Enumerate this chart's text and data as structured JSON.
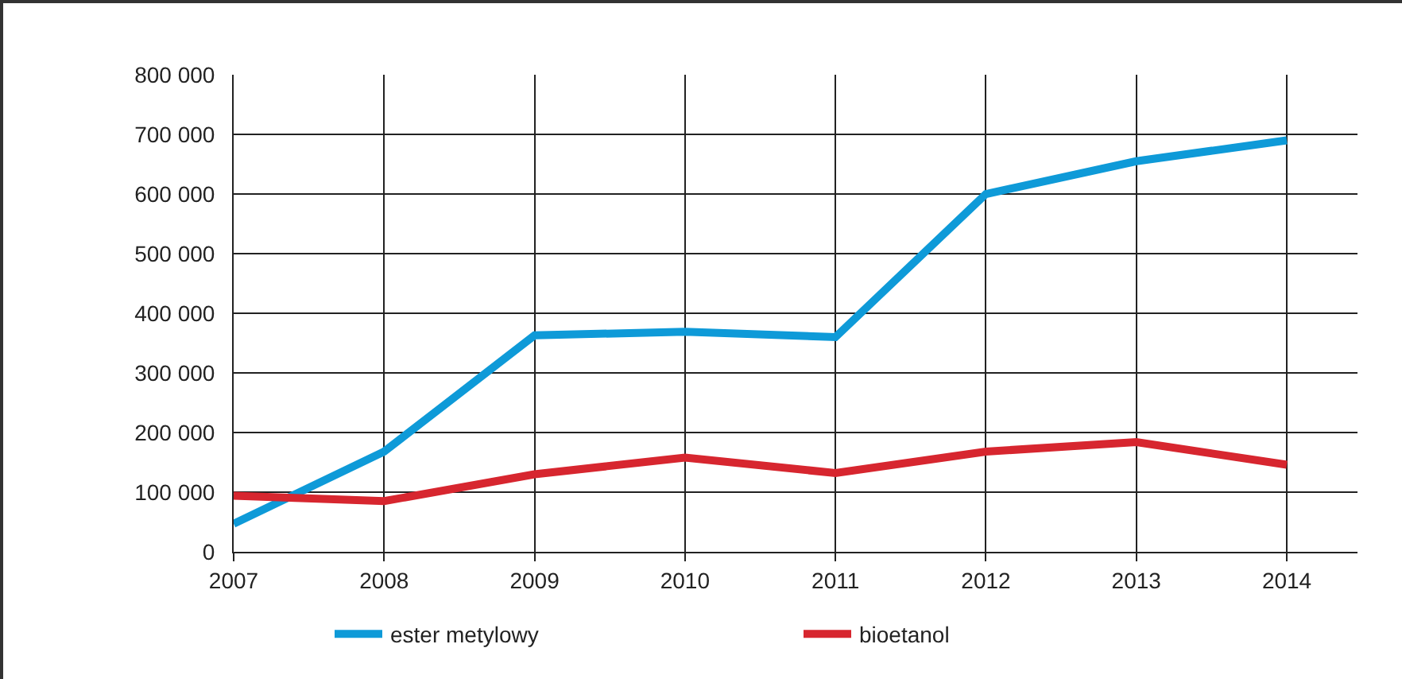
{
  "chart_data": {
    "type": "line",
    "categories": [
      "2007",
      "2008",
      "2009",
      "2010",
      "2011",
      "2012",
      "2013",
      "2014"
    ],
    "series": [
      {
        "name": "ester metylowy",
        "color": "#0e9ad8",
        "values": [
          47000,
          168000,
          363000,
          369000,
          360000,
          600000,
          655000,
          690000
        ]
      },
      {
        "name": "bioetanol",
        "color": "#d7262f",
        "values": [
          94000,
          85000,
          130000,
          158000,
          132000,
          168000,
          184000,
          146000
        ]
      }
    ],
    "ylim": [
      0,
      800000
    ],
    "yticks": [
      0,
      {
        "value": 100000,
        "label": "100 000"
      },
      {
        "value": 200000,
        "label": "200 000"
      },
      {
        "value": 300000,
        "label": "300 000"
      },
      {
        "value": 400000,
        "label": "400 000"
      },
      {
        "value": 500000,
        "label": "500 000"
      },
      {
        "value": 600000,
        "label": "600 000"
      },
      {
        "value": 700000,
        "label": "700 000"
      },
      {
        "value": 800000,
        "label": "800 000"
      }
    ],
    "grid": true,
    "legend": "bottom",
    "marker": "none",
    "line_style": "solid"
  }
}
